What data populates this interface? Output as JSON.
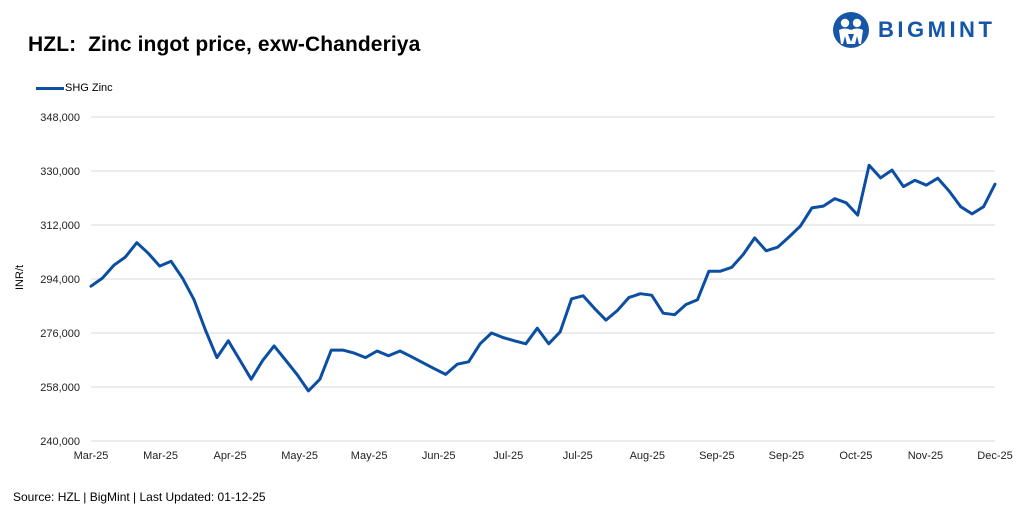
{
  "header": {
    "title": "HZL:  Zinc ingot price, exw-Chanderiya",
    "logo_text": "BIGMINT"
  },
  "footer": {
    "source": "Source: HZL | BigMint | Last Updated: 01-12-25"
  },
  "colors": {
    "series": "#0b4ea2",
    "grid": "#d9d9d9",
    "logo": "#1656a8"
  },
  "chart_data": {
    "type": "line",
    "title": "HZL:  Zinc ingot price, exw-Chanderiya",
    "xlabel": "",
    "ylabel": "INR/t",
    "ylim": [
      240000,
      348000
    ],
    "yticks": [
      240000,
      258000,
      276000,
      294000,
      312000,
      330000,
      348000
    ],
    "ytick_labels": [
      "240,000",
      "258,000",
      "276,000",
      "294,000",
      "312,000",
      "330,000",
      "348,000"
    ],
    "xtick_labels": [
      "Mar-25",
      "Mar-25",
      "Apr-25",
      "May-25",
      "May-25",
      "Jun-25",
      "Jul-25",
      "Jul-25",
      "Aug-25",
      "Sep-25",
      "Sep-25",
      "Oct-25",
      "Nov-25",
      "Dec-25"
    ],
    "grid": true,
    "legend_position": "top-left",
    "series": [
      {
        "name": "SHG Zinc",
        "values": [
          291600,
          294300,
          298600,
          301300,
          306100,
          302600,
          298300,
          299900,
          294300,
          287100,
          277000,
          267800,
          273400,
          267000,
          260600,
          266800,
          271700,
          267000,
          262200,
          256700,
          260600,
          270300,
          270300,
          269300,
          267800,
          270000,
          268400,
          270000,
          268100,
          266100,
          264100,
          262200,
          265600,
          266400,
          272400,
          276000,
          274500,
          273400,
          272400,
          277600,
          272400,
          276400,
          287400,
          288400,
          284200,
          280300,
          283500,
          287800,
          289100,
          288600,
          282600,
          282100,
          285500,
          287100,
          296600,
          296600,
          297900,
          302200,
          307700,
          303400,
          304600,
          308000,
          311700,
          317700,
          318300,
          320800,
          319400,
          315300,
          331900,
          327700,
          330300,
          324800,
          326900,
          325300,
          327600,
          323300,
          318100,
          315700,
          318100,
          325600
        ]
      }
    ]
  }
}
